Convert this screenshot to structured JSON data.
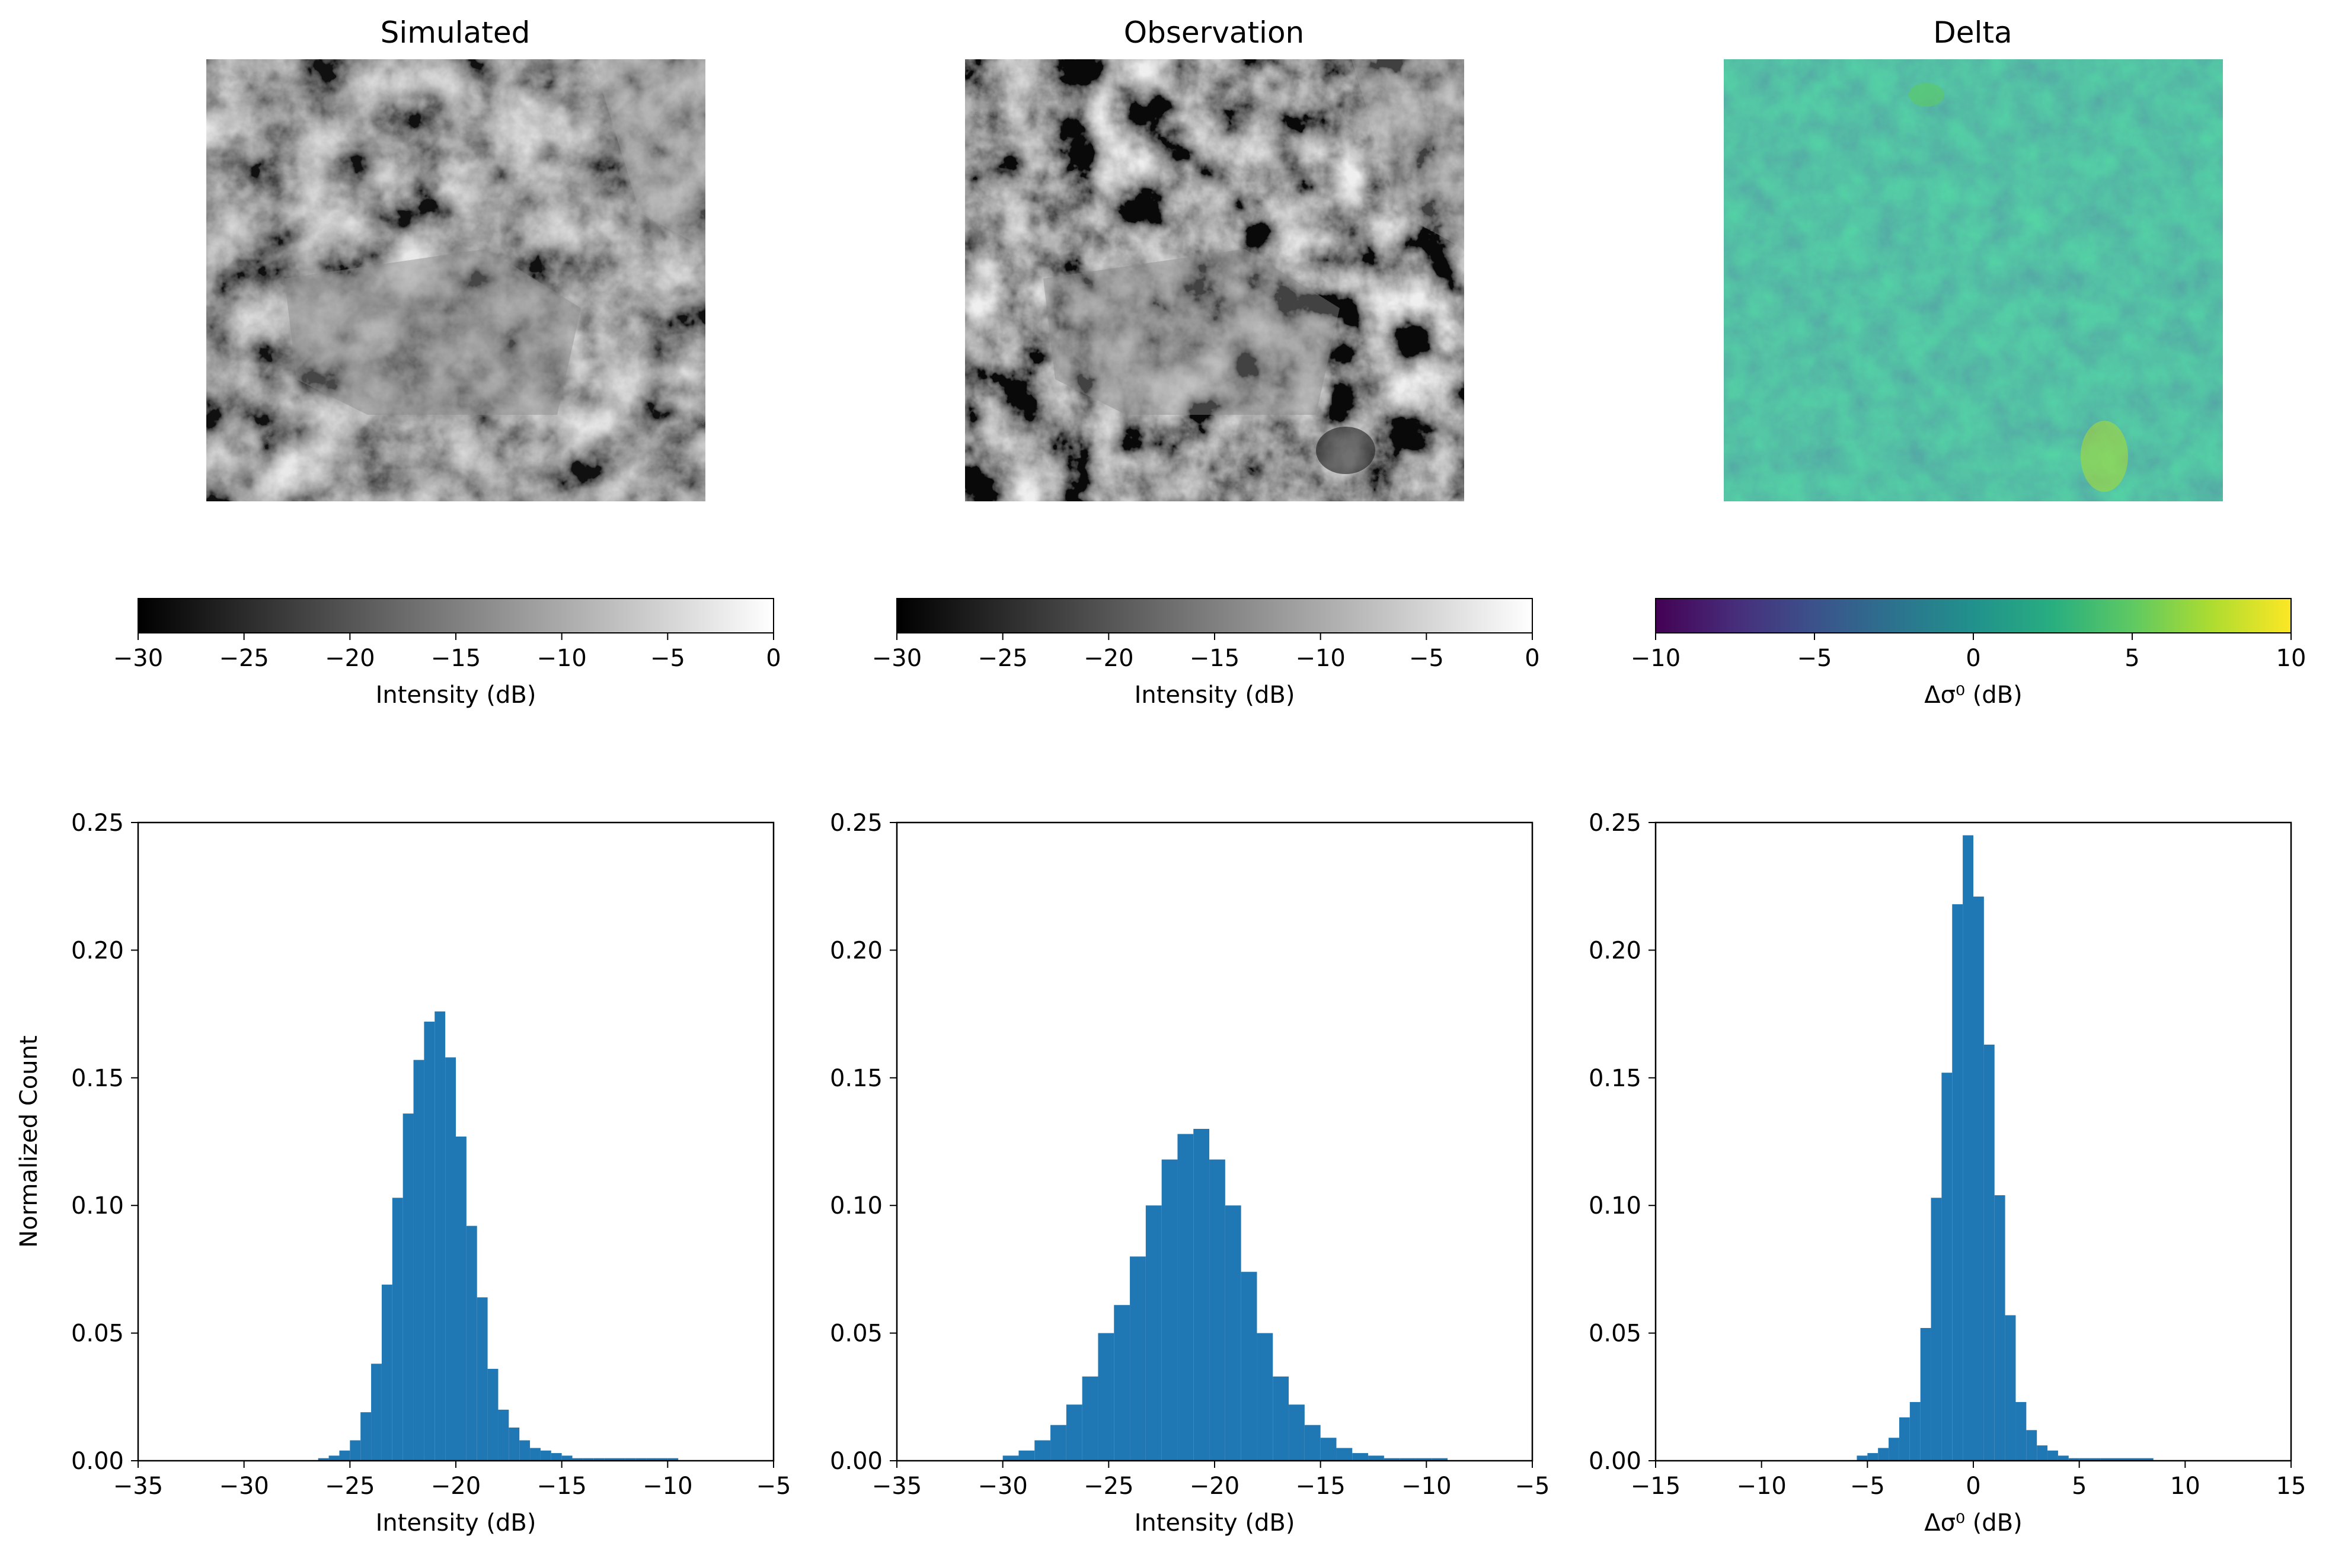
{
  "panels": [
    {
      "title": "Simulated",
      "kind": "gray",
      "seed": 11
    },
    {
      "title": "Observation",
      "kind": "gray",
      "seed": 23
    },
    {
      "title": "Delta",
      "kind": "viridis",
      "seed": 37
    }
  ],
  "colorbars": [
    {
      "cmap": "gray",
      "range": [
        -30,
        0
      ],
      "ticks": [
        -30,
        -25,
        -20,
        -15,
        -10,
        -5,
        0
      ],
      "label": "Intensity (dB)"
    },
    {
      "cmap": "gray",
      "range": [
        -30,
        0
      ],
      "ticks": [
        -30,
        -25,
        -20,
        -15,
        -10,
        -5,
        0
      ],
      "label": "Intensity (dB)"
    },
    {
      "cmap": "viridis",
      "range": [
        -10,
        10
      ],
      "ticks": [
        -10,
        -5,
        0,
        5,
        10
      ],
      "label": "Δσ⁰ (dB)"
    }
  ],
  "chart_data": [
    {
      "type": "histogram",
      "title": "",
      "xlabel": "Intensity (dB)",
      "ylabel": "Normalized Count",
      "xlim": [
        -35,
        -5
      ],
      "ylim": [
        0,
        0.25
      ],
      "xticks": [
        -35,
        -30,
        -25,
        -20,
        -15,
        -10,
        -5
      ],
      "yticks": [
        0.0,
        0.05,
        0.1,
        0.15,
        0.2,
        0.25
      ],
      "color": "#1f77b4",
      "bins": [
        {
          "x0": -26.5,
          "x1": -26.0,
          "y": 0.001
        },
        {
          "x0": -26.0,
          "x1": -25.5,
          "y": 0.002
        },
        {
          "x0": -25.5,
          "x1": -25.0,
          "y": 0.004
        },
        {
          "x0": -25.0,
          "x1": -24.5,
          "y": 0.008
        },
        {
          "x0": -24.5,
          "x1": -24.0,
          "y": 0.019
        },
        {
          "x0": -24.0,
          "x1": -23.5,
          "y": 0.038
        },
        {
          "x0": -23.5,
          "x1": -23.0,
          "y": 0.069
        },
        {
          "x0": -23.0,
          "x1": -22.5,
          "y": 0.103
        },
        {
          "x0": -22.5,
          "x1": -22.0,
          "y": 0.136
        },
        {
          "x0": -22.0,
          "x1": -21.5,
          "y": 0.157
        },
        {
          "x0": -21.5,
          "x1": -21.0,
          "y": 0.172
        },
        {
          "x0": -21.0,
          "x1": -20.5,
          "y": 0.176
        },
        {
          "x0": -20.5,
          "x1": -20.0,
          "y": 0.158
        },
        {
          "x0": -20.0,
          "x1": -19.5,
          "y": 0.127
        },
        {
          "x0": -19.5,
          "x1": -19.0,
          "y": 0.092
        },
        {
          "x0": -19.0,
          "x1": -18.5,
          "y": 0.064
        },
        {
          "x0": -18.5,
          "x1": -18.0,
          "y": 0.036
        },
        {
          "x0": -18.0,
          "x1": -17.5,
          "y": 0.02
        },
        {
          "x0": -17.5,
          "x1": -17.0,
          "y": 0.013
        },
        {
          "x0": -17.0,
          "x1": -16.5,
          "y": 0.008
        },
        {
          "x0": -16.5,
          "x1": -16.0,
          "y": 0.005
        },
        {
          "x0": -16.0,
          "x1": -15.5,
          "y": 0.004
        },
        {
          "x0": -15.5,
          "x1": -15.0,
          "y": 0.003
        },
        {
          "x0": -15.0,
          "x1": -14.5,
          "y": 0.002
        },
        {
          "x0": -14.5,
          "x1": -14.0,
          "y": 0.001
        },
        {
          "x0": -14.0,
          "x1": -13.5,
          "y": 0.001
        },
        {
          "x0": -13.5,
          "x1": -13.0,
          "y": 0.001
        },
        {
          "x0": -13.0,
          "x1": -12.5,
          "y": 0.001
        },
        {
          "x0": -12.5,
          "x1": -12.0,
          "y": 0.001
        },
        {
          "x0": -12.0,
          "x1": -11.5,
          "y": 0.001
        },
        {
          "x0": -11.5,
          "x1": -11.0,
          "y": 0.001
        },
        {
          "x0": -11.0,
          "x1": -10.5,
          "y": 0.001
        },
        {
          "x0": -10.5,
          "x1": -10.0,
          "y": 0.001
        },
        {
          "x0": -10.0,
          "x1": -9.5,
          "y": 0.001
        }
      ]
    },
    {
      "type": "histogram",
      "title": "",
      "xlabel": "Intensity (dB)",
      "ylabel": "",
      "xlim": [
        -35,
        -5
      ],
      "ylim": [
        0,
        0.25
      ],
      "xticks": [
        -35,
        -30,
        -25,
        -20,
        -15,
        -10,
        -5
      ],
      "yticks": [
        0.0,
        0.05,
        0.1,
        0.15,
        0.2,
        0.25
      ],
      "color": "#1f77b4",
      "bins": [
        {
          "x0": -30.0,
          "x1": -29.25,
          "y": 0.002
        },
        {
          "x0": -29.25,
          "x1": -28.5,
          "y": 0.004
        },
        {
          "x0": -28.5,
          "x1": -27.75,
          "y": 0.008
        },
        {
          "x0": -27.75,
          "x1": -27.0,
          "y": 0.014
        },
        {
          "x0": -27.0,
          "x1": -26.25,
          "y": 0.022
        },
        {
          "x0": -26.25,
          "x1": -25.5,
          "y": 0.033
        },
        {
          "x0": -25.5,
          "x1": -24.75,
          "y": 0.05
        },
        {
          "x0": -24.75,
          "x1": -24.0,
          "y": 0.061
        },
        {
          "x0": -24.0,
          "x1": -23.25,
          "y": 0.08
        },
        {
          "x0": -23.25,
          "x1": -22.5,
          "y": 0.1
        },
        {
          "x0": -22.5,
          "x1": -21.75,
          "y": 0.118
        },
        {
          "x0": -21.75,
          "x1": -21.0,
          "y": 0.128
        },
        {
          "x0": -21.0,
          "x1": -20.25,
          "y": 0.13
        },
        {
          "x0": -20.25,
          "x1": -19.5,
          "y": 0.118
        },
        {
          "x0": -19.5,
          "x1": -18.75,
          "y": 0.1
        },
        {
          "x0": -18.75,
          "x1": -18.0,
          "y": 0.074
        },
        {
          "x0": -18.0,
          "x1": -17.25,
          "y": 0.05
        },
        {
          "x0": -17.25,
          "x1": -16.5,
          "y": 0.033
        },
        {
          "x0": -16.5,
          "x1": -15.75,
          "y": 0.022
        },
        {
          "x0": -15.75,
          "x1": -15.0,
          "y": 0.014
        },
        {
          "x0": -15.0,
          "x1": -14.25,
          "y": 0.009
        },
        {
          "x0": -14.25,
          "x1": -13.5,
          "y": 0.005
        },
        {
          "x0": -13.5,
          "x1": -12.75,
          "y": 0.003
        },
        {
          "x0": -12.75,
          "x1": -12.0,
          "y": 0.002
        },
        {
          "x0": -12.0,
          "x1": -11.25,
          "y": 0.001
        },
        {
          "x0": -11.25,
          "x1": -10.5,
          "y": 0.001
        },
        {
          "x0": -10.5,
          "x1": -9.75,
          "y": 0.001
        },
        {
          "x0": -9.75,
          "x1": -9.0,
          "y": 0.001
        }
      ]
    },
    {
      "type": "histogram",
      "title": "",
      "xlabel": "Δσ⁰ (dB)",
      "ylabel": "",
      "xlim": [
        -15,
        15
      ],
      "ylim": [
        0,
        0.25
      ],
      "xticks": [
        -15,
        -10,
        -5,
        0,
        5,
        10,
        15
      ],
      "yticks": [
        0.0,
        0.05,
        0.1,
        0.15,
        0.2,
        0.25
      ],
      "color": "#1f77b4",
      "bins": [
        {
          "x0": -5.5,
          "x1": -5.0,
          "y": 0.002
        },
        {
          "x0": -5.0,
          "x1": -4.5,
          "y": 0.003
        },
        {
          "x0": -4.5,
          "x1": -4.0,
          "y": 0.005
        },
        {
          "x0": -4.0,
          "x1": -3.5,
          "y": 0.009
        },
        {
          "x0": -3.5,
          "x1": -3.0,
          "y": 0.017
        },
        {
          "x0": -3.0,
          "x1": -2.5,
          "y": 0.023
        },
        {
          "x0": -2.5,
          "x1": -2.0,
          "y": 0.052
        },
        {
          "x0": -2.0,
          "x1": -1.5,
          "y": 0.103
        },
        {
          "x0": -1.5,
          "x1": -1.0,
          "y": 0.152
        },
        {
          "x0": -1.0,
          "x1": -0.5,
          "y": 0.218
        },
        {
          "x0": -0.5,
          "x1": 0.0,
          "y": 0.245
        },
        {
          "x0": 0.0,
          "x1": 0.5,
          "y": 0.221
        },
        {
          "x0": 0.5,
          "x1": 1.0,
          "y": 0.163
        },
        {
          "x0": 1.0,
          "x1": 1.5,
          "y": 0.104
        },
        {
          "x0": 1.5,
          "x1": 2.0,
          "y": 0.057
        },
        {
          "x0": 2.0,
          "x1": 2.5,
          "y": 0.023
        },
        {
          "x0": 2.5,
          "x1": 3.0,
          "y": 0.012
        },
        {
          "x0": 3.0,
          "x1": 3.5,
          "y": 0.006
        },
        {
          "x0": 3.5,
          "x1": 4.0,
          "y": 0.004
        },
        {
          "x0": 4.0,
          "x1": 4.5,
          "y": 0.002
        },
        {
          "x0": 4.5,
          "x1": 5.0,
          "y": 0.001
        },
        {
          "x0": 5.0,
          "x1": 5.5,
          "y": 0.001
        },
        {
          "x0": 5.5,
          "x1": 6.0,
          "y": 0.001
        },
        {
          "x0": 6.0,
          "x1": 8.5,
          "y": 0.001
        }
      ]
    }
  ]
}
